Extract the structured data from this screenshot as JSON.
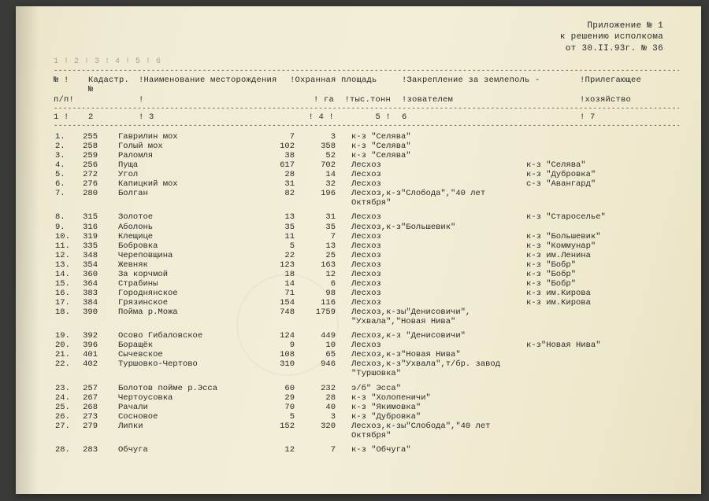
{
  "header": {
    "l1": "Приложение № 1",
    "l2": "к решению исполкома",
    "l3": "от 30.II.93г. № 36"
  },
  "faint_numbers": "1  !   2   !           3           !   4  !   5   !           6",
  "columns": {
    "r1": {
      "c1": "№ !",
      "c2": "Кадастр. №",
      "c3": "!Наименование месторождения",
      "c4": "!Охранная площадь",
      "c5": "",
      "c6": "!Закрепление за землеполь -",
      "c7": "!Прилегающее"
    },
    "r2": {
      "c1": "п/п!",
      "c2": "",
      "c3": "!",
      "c4": "! га",
      "c5": "!тыс.тонн",
      "c6": "!зователем",
      "c7": "!хозяйство"
    },
    "nums": {
      "c1": "1 !",
      "c2": "2",
      "c3": "!            3",
      "c4": "!  4  !",
      "c5": "5   !",
      "c6": "            6",
      "c7": "!    7"
    }
  },
  "rows": [
    {
      "n": "1.",
      "k": "255",
      "name": "Гаврилин мох",
      "ga": "7",
      "tt": "3",
      "z": "к-з \"Селява\"",
      "h": ""
    },
    {
      "n": "2.",
      "k": "258",
      "name": "Голый мох",
      "ga": "102",
      "tt": "358",
      "z": "к-з \"Селява\"",
      "h": ""
    },
    {
      "n": "3.",
      "k": "259",
      "name": "Раломля",
      "ga": "38",
      "tt": "52",
      "z": "к-з \"Селява\"",
      "h": ""
    },
    {
      "n": "4.",
      "k": "256",
      "name": "Пуща",
      "ga": "617",
      "tt": "702",
      "z": "Лесхоз",
      "h": "к-з \"Селява\""
    },
    {
      "n": "5.",
      "k": "272",
      "name": "Угол",
      "ga": "28",
      "tt": "14",
      "z": "Лесхоз",
      "h": "к-з \"Дубровка\""
    },
    {
      "n": "6.",
      "k": "276",
      "name": "Капицкий мох",
      "ga": "31",
      "tt": "32",
      "z": "Лесхоз",
      "h": "с-з \"Авангард\""
    },
    {
      "n": "7.",
      "k": "280",
      "name": "Болган",
      "ga": "82",
      "tt": "196",
      "z": "Лесхоз,к-з\"Слобода\",\"40 лет Октября\"",
      "h": ""
    },
    {
      "gap": true
    },
    {
      "n": "8.",
      "k": "315",
      "name": "Золотое",
      "ga": "13",
      "tt": "31",
      "z": "Лесхоз",
      "h": "к-з \"Староселье\""
    },
    {
      "n": "9.",
      "k": "316",
      "name": "Аболонь",
      "ga": "35",
      "tt": "35",
      "z": "Лесхоз,к-з\"Большевик\"",
      "h": ""
    },
    {
      "n": "10.",
      "k": "319",
      "name": "Клещице",
      "ga": "11",
      "tt": "7",
      "z": "Лесхоз",
      "h": "к-з \"Большевик\""
    },
    {
      "n": "11.",
      "k": "335",
      "name": "Бобровка",
      "ga": "5",
      "tt": "13",
      "z": "Лесхоз",
      "h": "к-з \"Коммунар\""
    },
    {
      "n": "12.",
      "k": "348",
      "name": "Череповщина",
      "ga": "22",
      "tt": "25",
      "z": "Лесхоз",
      "h": "к-з им.Ленина"
    },
    {
      "n": "13.",
      "k": "354",
      "name": "Жевняк",
      "ga": "123",
      "tt": "163",
      "z": "Лесхоз",
      "h": "к-з \"Бобр\""
    },
    {
      "n": "14.",
      "k": "360",
      "name": "За корчмой",
      "ga": "18",
      "tt": "12",
      "z": "Лесхоз",
      "h": "к-з \"Бобр\""
    },
    {
      "n": "15.",
      "k": "364",
      "name": "Страбины",
      "ga": "14",
      "tt": "6",
      "z": "Лесхоз",
      "h": "к-з \"Бобр\""
    },
    {
      "n": "16.",
      "k": "383",
      "name": "Городнянское",
      "ga": "71",
      "tt": "98",
      "z": "Лесхоз",
      "h": "к-з им.Кирова"
    },
    {
      "n": "17.",
      "k": "384",
      "name": "Грязинское",
      "ga": "154",
      "tt": "116",
      "z": "Лесхоз",
      "h": "к-з им.Кирова"
    },
    {
      "n": "18.",
      "k": "390",
      "name": "Пойма р.Можа",
      "ga": "748",
      "tt": "1759",
      "z": "Лесхоз,к-зы\"Денисовичи\", \"Ухвала\",\"Новая Нива\"",
      "h": ""
    },
    {
      "gap": true
    },
    {
      "n": "19.",
      "k": "392",
      "name": "Осово Гибаловское",
      "ga": "124",
      "tt": "449",
      "z": "Лесхоз,к-з \"Денисовичи\"",
      "h": ""
    },
    {
      "n": "20.",
      "k": "396",
      "name": "Боращёк",
      "ga": "9",
      "tt": "10",
      "z": "Лесхоз",
      "h": "к-з\"Новая Нива\""
    },
    {
      "n": "21.",
      "k": "401",
      "name": "Сычевское",
      "ga": "108",
      "tt": "65",
      "z": "Лесхоз,к-з\"Новая Нива\"",
      "h": ""
    },
    {
      "n": "22.",
      "k": "402",
      "name": "Туршовко-Чертово",
      "ga": "310",
      "tt": "946",
      "z": "Лесхоз,к-з\"Ухвала\",т/бр. завод \"Туршовка\"",
      "h": ""
    },
    {
      "gap": true
    },
    {
      "n": "23.",
      "k": "257",
      "name": "Болотов пойме р.Эсса",
      "ga": "60",
      "tt": "232",
      "z": "э/б\" Эсса\"",
      "h": ""
    },
    {
      "n": "24.",
      "k": "267",
      "name": "Чертоусовка",
      "ga": "29",
      "tt": "28",
      "z": "к-з \"Холопеничи\"",
      "h": ""
    },
    {
      "n": "25.",
      "k": "268",
      "name": "Рачали",
      "ga": "70",
      "tt": "40",
      "z": "к-з \"Якимовка\"",
      "h": ""
    },
    {
      "n": "26.",
      "k": "273",
      "name": "Сосновое",
      "ga": "5",
      "tt": "3",
      "z": "к-з \"Дубровка\"",
      "h": ""
    },
    {
      "n": "27.",
      "k": "279",
      "name": "Липки",
      "ga": "152",
      "tt": "320",
      "z": "Лесхоз,к-зы\"Слобода\",\"40 лет Октября\"",
      "h": ""
    },
    {
      "gap": true
    },
    {
      "n": "28.",
      "k": "283",
      "name": "Обчуга",
      "ga": "12",
      "tt": "7",
      "z": "к-з \"Обчуга\"",
      "h": ""
    }
  ],
  "dash": "---------------------------------------------------------------------------------------------------------------------------------------------"
}
